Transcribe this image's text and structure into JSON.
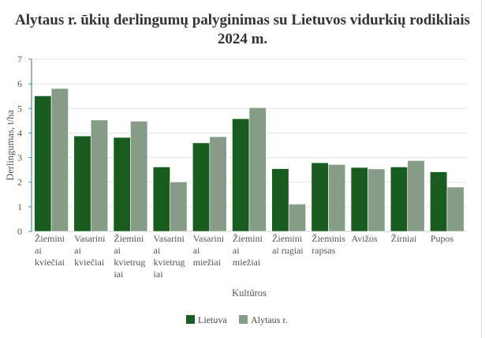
{
  "chart_data": {
    "type": "bar",
    "title": "Alytaus r. ūkių derlingumų palyginimas su Lietuvos vidurkių rodikliais 2024 m.",
    "xlabel": "Kultūros",
    "ylabel": "Derlingumas, t/ha",
    "ylim": [
      0,
      7
    ],
    "yticks": [
      0,
      1,
      2,
      3,
      4,
      5,
      6,
      7
    ],
    "grid": true,
    "legend": "bottom",
    "categories": [
      [
        "Žiemini",
        "ai",
        "kviečiai"
      ],
      [
        "Vasarini",
        "ai",
        "kviečiai"
      ],
      [
        "Žiemini",
        "ai",
        "kvietrug",
        "iai"
      ],
      [
        "Vasarini",
        "ai",
        "kvietrug",
        "iai"
      ],
      [
        "Vasarini",
        "ai",
        "miežiai"
      ],
      [
        "Žiemini",
        "ai",
        "miežiai"
      ],
      [
        "Žiemini",
        "ai rugiai"
      ],
      [
        "Žieminis",
        "rapsas"
      ],
      [
        "Avižos"
      ],
      [
        "Žirniai"
      ],
      [
        "Pupos"
      ]
    ],
    "series": [
      {
        "name": "Lietuva",
        "color": "#1a5c20",
        "values": [
          5.51,
          3.88,
          3.82,
          2.62,
          3.6,
          4.58,
          2.55,
          2.79,
          2.6,
          2.62,
          2.42
        ]
      },
      {
        "name": "Alytaus r.",
        "color": "#869c86",
        "values": [
          5.81,
          4.53,
          4.48,
          2.01,
          3.85,
          5.03,
          1.11,
          2.72,
          2.54,
          2.88,
          1.8
        ]
      }
    ]
  }
}
